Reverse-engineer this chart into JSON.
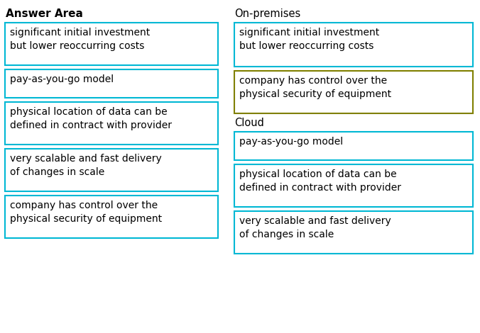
{
  "title": "Answer Area",
  "left_items": [
    "significant initial investment\nbut lower reoccurring costs",
    "pay-as-you-go model",
    "physical location of data can be\ndefined in contract with provider",
    "very scalable and fast delivery\nof changes in scale",
    "company has control over the\nphysical security of equipment"
  ],
  "right_sections": [
    {
      "label": "On-premises",
      "items": [
        {
          "text": "significant initial investment\nbut lower reoccurring costs",
          "border_color": "#00B8D4"
        },
        {
          "text": "company has control over the\nphysical security of equipment",
          "border_color": "#808000"
        }
      ]
    },
    {
      "label": "Cloud",
      "items": [
        {
          "text": "pay-as-you-go model",
          "border_color": "#00B8D4"
        },
        {
          "text": "physical location of data can be\ndefined in contract with provider",
          "border_color": "#00B8D4"
        },
        {
          "text": "very scalable and fast delivery\nof changes in scale",
          "border_color": "#00B8D4"
        }
      ]
    }
  ],
  "left_border_color": "#00B8D4",
  "bg_color": "#FFFFFF",
  "text_color": "#000000",
  "title_fontsize": 11,
  "item_fontsize": 10,
  "label_fontsize": 10.5
}
